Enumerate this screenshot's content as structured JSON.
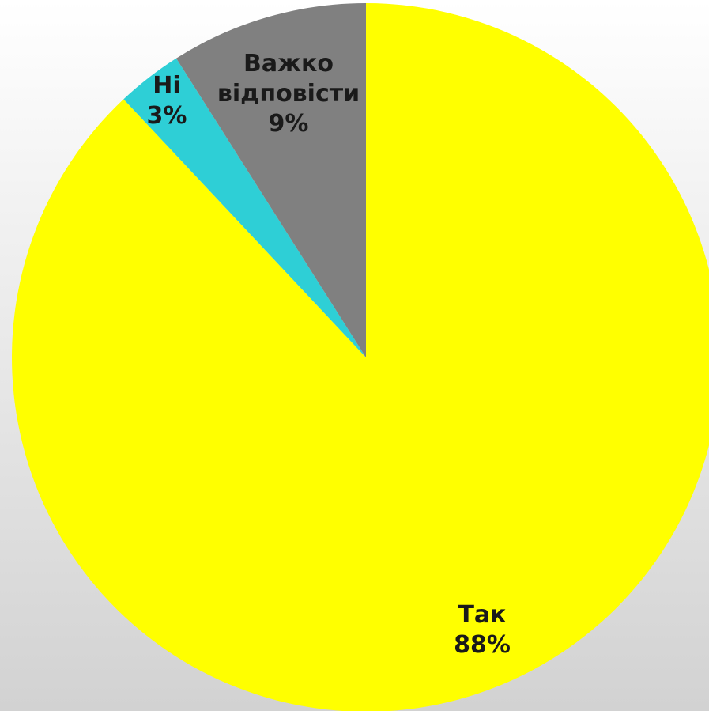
{
  "chart_data": {
    "type": "pie",
    "title": "",
    "start_angle_deg": 0,
    "direction": "clockwise",
    "legend": "none",
    "slices": [
      {
        "label_lines": [
          "Так"
        ],
        "percent_label": "88%",
        "value": 88,
        "color": "#ffff00"
      },
      {
        "label_lines": [
          "Ні"
        ],
        "percent_label": "3%",
        "value": 3,
        "color": "#2ecfd6"
      },
      {
        "label_lines": [
          "Важко",
          "відповісти"
        ],
        "percent_label": "9%",
        "value": 9,
        "color": "#808080"
      }
    ]
  }
}
